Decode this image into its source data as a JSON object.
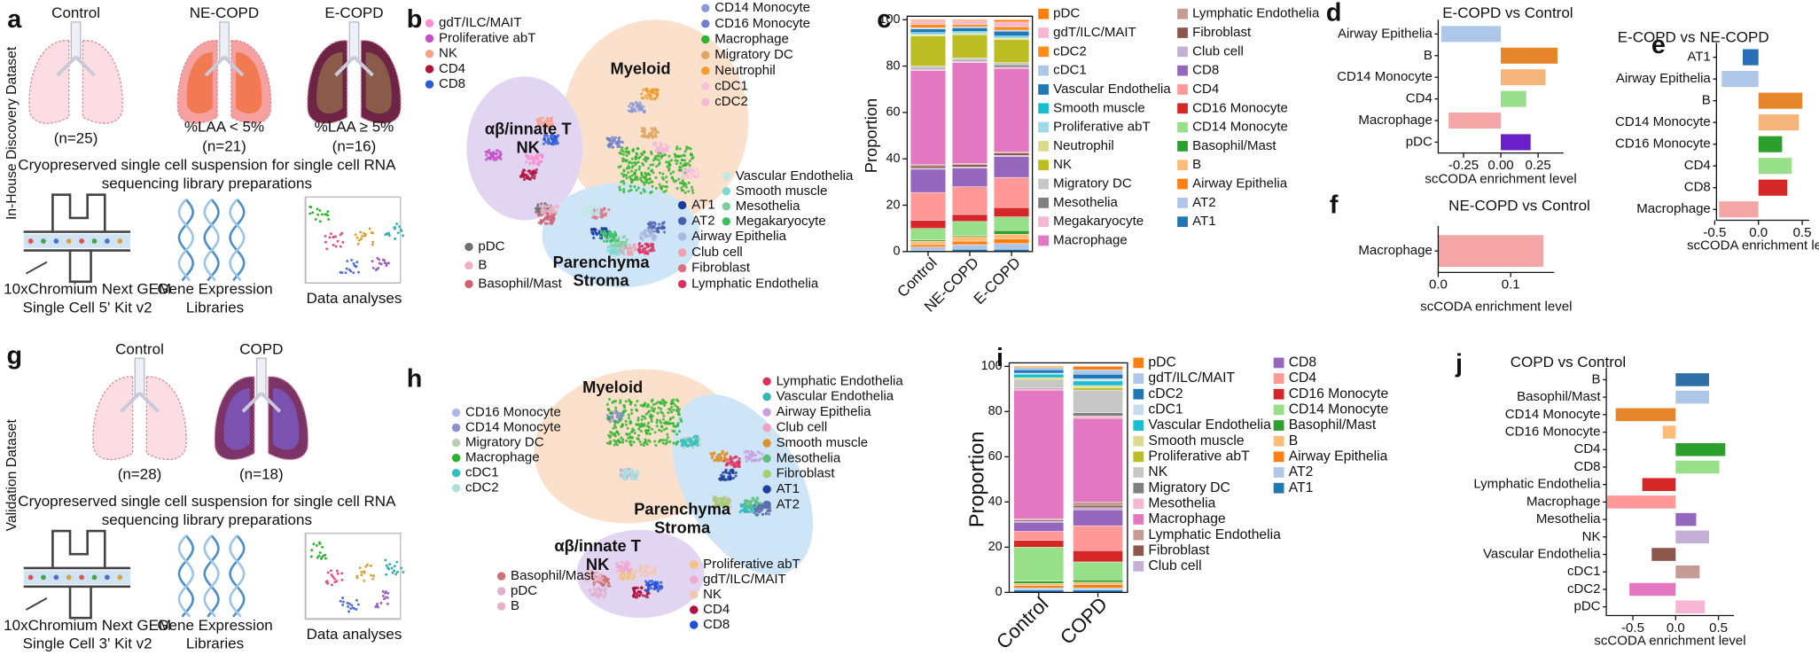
{
  "panels": {
    "a": {
      "letter": "a",
      "side_label": "In-House Discovery Dataset",
      "groups": [
        {
          "name": "Control",
          "lines": [
            "(n=25)"
          ]
        },
        {
          "name": "NE-COPD",
          "lines": [
            "%LAA < 5%",
            "(n=21)"
          ]
        },
        {
          "name": "E-COPD",
          "lines": [
            "%LAA ≥ 5%",
            "(n=16)"
          ]
        }
      ],
      "caption": [
        "Cryopreserved single cell suspension for single cell RNA",
        "sequencing library preparations"
      ],
      "steps": [
        {
          "lines": [
            "10xChromium Next GEM",
            "Single Cell 5' Kit v2"
          ]
        },
        {
          "lines": [
            "Gene Expression",
            "Libraries"
          ]
        },
        {
          "lines": [
            "Data analyses"
          ]
        }
      ]
    },
    "g": {
      "letter": "g",
      "side_label": "Validation Dataset",
      "groups": [
        {
          "name": "Control",
          "lines": [
            "(n=28)"
          ]
        },
        {
          "name": "COPD",
          "lines": [
            "(n=18)"
          ]
        }
      ],
      "caption": [
        "Cryopreserved single cell suspension for single cell RNA",
        "sequencing library preparations"
      ],
      "steps": [
        {
          "lines": [
            "10xChromium Next GEM",
            "Single Cell 3' Kit v2"
          ]
        },
        {
          "lines": [
            "Gene Expression",
            "Libraries"
          ]
        },
        {
          "lines": [
            "Data analyses"
          ]
        }
      ]
    },
    "b": {
      "letter": "b",
      "regions": [
        {
          "lines": [
            "Myeloid"
          ]
        },
        {
          "lines": [
            "αβ/innate T",
            "NK"
          ]
        },
        {
          "lines": [
            "Parenchyma",
            "Stroma"
          ]
        }
      ],
      "legends": [
        [
          {
            "name": "gdT/ILC/MAIT",
            "color": "#f78fd0"
          },
          {
            "name": "Proliferative abT",
            "color": "#c44fc8"
          },
          {
            "name": "NK",
            "color": "#f7a08a"
          },
          {
            "name": "CD4",
            "color": "#b0133e"
          },
          {
            "name": "CD8",
            "color": "#2a5ad6"
          }
        ],
        [
          {
            "name": "CD14 Monocyte",
            "color": "#8a9ad8"
          },
          {
            "name": "CD16 Monocyte",
            "color": "#6f7fc9"
          },
          {
            "name": "Macrophage",
            "color": "#2cb52c"
          },
          {
            "name": "Migratory DC",
            "color": "#e0a560"
          },
          {
            "name": "Neutrophil",
            "color": "#f09a30"
          },
          {
            "name": "cDC1",
            "color": "#f7c0e0"
          },
          {
            "name": "cDC2",
            "color": "#f5b8d8"
          }
        ],
        [
          {
            "name": "AT1",
            "color": "#1a3ba0"
          },
          {
            "name": "AT2",
            "color": "#4a5fb0"
          },
          {
            "name": "Airway Epithelia",
            "color": "#a8b8e0"
          },
          {
            "name": "Club cell",
            "color": "#f0a0b0"
          },
          {
            "name": "Fibroblast",
            "color": "#e07080"
          },
          {
            "name": "Lymphatic Endothelia",
            "color": "#e03060"
          }
        ],
        [
          {
            "name": "Vascular Endothelia",
            "color": "#bfe8e8"
          },
          {
            "name": "Smooth muscle",
            "color": "#7fd9d0"
          },
          {
            "name": "Mesothelia",
            "color": "#7ccf98"
          },
          {
            "name": "Megakaryocyte",
            "color": "#38c060"
          }
        ],
        [
          {
            "name": "pDC",
            "color": "#707070"
          },
          {
            "name": "B",
            "color": "#f0b0c0"
          },
          {
            "name": "Basophil/Mast",
            "color": "#d06070"
          }
        ]
      ]
    },
    "h": {
      "letter": "h",
      "regions": [
        {
          "lines": [
            "Myeloid"
          ]
        },
        {
          "lines": [
            "Parenchyma",
            "Stroma"
          ]
        },
        {
          "lines": [
            "αβ/innate T",
            "NK"
          ]
        }
      ],
      "legends": [
        [
          {
            "name": "CD16 Monocyte",
            "color": "#b0b8e8"
          },
          {
            "name": "CD14 Monocyte",
            "color": "#8a90d0"
          },
          {
            "name": "Migratory DC",
            "color": "#b8d0b0"
          },
          {
            "name": "Macrophage",
            "color": "#2cb52c"
          },
          {
            "name": "cDC1",
            "color": "#30c0c0"
          },
          {
            "name": "cDC2",
            "color": "#b0e0d8"
          }
        ],
        [
          {
            "name": "Lymphatic Endothelia",
            "color": "#e03060"
          },
          {
            "name": "Vascular Endothelia",
            "color": "#30b8b8"
          },
          {
            "name": "Airway Epithelia",
            "color": "#c8a0e0"
          },
          {
            "name": "Club cell",
            "color": "#f0a0c0"
          },
          {
            "name": "Smooth muscle",
            "color": "#e0902a"
          },
          {
            "name": "Mesothelia",
            "color": "#5cc07a"
          },
          {
            "name": "Fibroblast",
            "color": "#a0d070"
          },
          {
            "name": "AT1",
            "color": "#2040a0"
          },
          {
            "name": "AT2",
            "color": "#5a70b0"
          }
        ],
        [
          {
            "name": "Basophil/Mast",
            "color": "#d07070"
          },
          {
            "name": "pDC",
            "color": "#e0b0d0"
          },
          {
            "name": "B",
            "color": "#e8b0c0"
          }
        ],
        [
          {
            "name": "Proliferative abT",
            "color": "#f5c080"
          },
          {
            "name": "gdT/ILC/MAIT",
            "color": "#f0a8d0"
          },
          {
            "name": "NK",
            "color": "#f0c8b0"
          },
          {
            "name": "CD4",
            "color": "#b0103c"
          },
          {
            "name": "CD8",
            "color": "#2050d8"
          }
        ]
      ]
    }
  },
  "chart_data": [
    {
      "type": "stacked_bar",
      "panel": "c",
      "ylabel": "Proportion",
      "categories": [
        "Control",
        "NE-COPD",
        "E-COPD"
      ],
      "ylim": [
        0,
        100
      ],
      "yticks": [
        0,
        20,
        40,
        60,
        80,
        100
      ],
      "series": [
        {
          "name": "pDC",
          "color": "#ff7f0e",
          "values": [
            0.5,
            0.5,
            1
          ]
        },
        {
          "name": "gdT/ILC/MAIT",
          "color": "#f7b6d2",
          "values": [
            1.5,
            1.5,
            2
          ]
        },
        {
          "name": "cDC2",
          "color": "#ff8c1a",
          "values": [
            1.5,
            1,
            1.5
          ]
        },
        {
          "name": "cDC1",
          "color": "#aec7e8",
          "values": [
            0.5,
            0.5,
            0.5
          ]
        },
        {
          "name": "Vascular Endothelia",
          "color": "#1f77b4",
          "values": [
            1.5,
            1.5,
            2
          ]
        },
        {
          "name": "Smooth muscle",
          "color": "#17becf",
          "values": [
            0.5,
            0.5,
            0.5
          ]
        },
        {
          "name": "Proliferative abT",
          "color": "#9edae5",
          "values": [
            0.5,
            0.5,
            0.5
          ]
        },
        {
          "name": "Neutrophil",
          "color": "#dbdb8d",
          "values": [
            0.5,
            0.5,
            0.5
          ]
        },
        {
          "name": "NK",
          "color": "#bcbd22",
          "values": [
            13,
            10,
            10
          ]
        },
        {
          "name": "Migratory DC",
          "color": "#c7c7c7",
          "values": [
            1,
            1,
            1
          ]
        },
        {
          "name": "Mesothelia",
          "color": "#7f7f7f",
          "values": [
            0.5,
            0.5,
            1
          ]
        },
        {
          "name": "Megakaryocyte",
          "color": "#f7b6d2",
          "values": [
            0.5,
            0.5,
            0.5
          ]
        },
        {
          "name": "Macrophage",
          "color": "#e377c2",
          "values": [
            40.5,
            43.5,
            36
          ]
        },
        {
          "name": "Lymphatic Endothelia",
          "color": "#c49c94",
          "values": [
            0.5,
            0.5,
            0.5
          ]
        },
        {
          "name": "Fibroblast",
          "color": "#8c564b",
          "values": [
            1,
            1,
            1
          ]
        },
        {
          "name": "Club cell",
          "color": "#c5b0d5",
          "values": [
            0.5,
            0.5,
            0.5
          ]
        },
        {
          "name": "CD8",
          "color": "#9467bd",
          "values": [
            10,
            8,
            9
          ]
        },
        {
          "name": "CD4",
          "color": "#ff9896",
          "values": [
            12,
            12,
            13
          ]
        },
        {
          "name": "CD16 Monocyte",
          "color": "#d62728",
          "values": [
            3.5,
            3,
            4
          ]
        },
        {
          "name": "CD14 Monocyte",
          "color": "#98df8a",
          "values": [
            5,
            6,
            6
          ]
        },
        {
          "name": "Basophil/Mast",
          "color": "#2ca02c",
          "values": [
            0.5,
            0.5,
            1.5
          ]
        },
        {
          "name": "B",
          "color": "#ffbb78",
          "values": [
            1.5,
            2,
            2
          ]
        },
        {
          "name": "Airway Epithelia",
          "color": "#ff7f0e",
          "values": [
            1,
            1.5,
            2
          ]
        },
        {
          "name": "AT2",
          "color": "#aec7e8",
          "values": [
            1.5,
            2,
            2.5
          ]
        },
        {
          "name": "AT1",
          "color": "#1f77b4",
          "values": [
            0.5,
            1,
            1
          ]
        }
      ]
    },
    {
      "type": "hbar",
      "panel": "d",
      "title": "E-COPD vs Control",
      "xlabel": "scCODA enrichment level",
      "categories": [
        "Airway Epithelia",
        "B",
        "CD14 Monocyte",
        "CD4",
        "Macrophage",
        "pDC"
      ],
      "values": [
        -0.4,
        0.38,
        0.3,
        0.17,
        -0.35,
        0.2
      ],
      "colors": [
        "#aec7e8",
        "#e6852a",
        "#f5b47a",
        "#98df8a",
        "#f4a6a6",
        "#6a1fc9"
      ],
      "xlim": [
        -0.42,
        0.42
      ],
      "xticks": [
        {
          "value": -0.25,
          "label": "-0.25"
        },
        {
          "value": 0,
          "label": "0.00"
        },
        {
          "value": 0.25,
          "label": "0.25"
        }
      ]
    },
    {
      "type": "hbar",
      "panel": "e",
      "title": "E-COPD vs NE-COPD",
      "xlabel": "scCODA enrichment level",
      "categories": [
        "AT1",
        "Airway Epithelia",
        "B",
        "CD14 Monocyte",
        "CD16 Monocyte",
        "CD4",
        "CD8",
        "Macrophage"
      ],
      "values": [
        -0.18,
        -0.42,
        0.5,
        0.46,
        0.27,
        0.38,
        0.33,
        -0.45
      ],
      "colors": [
        "#2a6fb5",
        "#aec7e8",
        "#e6852a",
        "#f5b47a",
        "#2ca02c",
        "#98df8a",
        "#d62728",
        "#f4a6a6"
      ],
      "xlim": [
        -0.48,
        0.58
      ],
      "xticks": [
        {
          "value": -0.5,
          "label": "-0.5"
        },
        {
          "value": 0,
          "label": "0.0"
        },
        0.5
      ]
    },
    {
      "type": "hbar",
      "panel": "f",
      "title": "NE-COPD vs Control",
      "xlabel": "scCODA enrichment level",
      "categories": [
        "Macrophage"
      ],
      "values": [
        0.145
      ],
      "colors": [
        "#f4a6a6"
      ],
      "xlim": [
        0,
        0.16
      ],
      "xticks": [
        {
          "value": 0,
          "label": "0.0"
        },
        0.1
      ]
    },
    {
      "type": "stacked_bar",
      "panel": "i",
      "ylabel": "Proportion",
      "categories": [
        "Control",
        "COPD"
      ],
      "ylim": [
        0,
        100
      ],
      "yticks": [
        0,
        20,
        40,
        60,
        80,
        100
      ],
      "series": [
        {
          "name": "pDC",
          "color": "#ff7f0e",
          "values": [
            0.5,
            1.5
          ]
        },
        {
          "name": "gdT/ILC/MAIT",
          "color": "#aec7e8",
          "values": [
            1,
            2
          ]
        },
        {
          "name": "cDC2",
          "color": "#1f77b4",
          "values": [
            1.5,
            2
          ]
        },
        {
          "name": "cDC1",
          "color": "#c6dbef",
          "values": [
            0.5,
            1
          ]
        },
        {
          "name": "Vascular Endothelia",
          "color": "#17becf",
          "values": [
            1.5,
            2
          ]
        },
        {
          "name": "Smooth muscle",
          "color": "#dbdb8d",
          "values": [
            0.5,
            1
          ]
        },
        {
          "name": "Proliferative abT",
          "color": "#bcbd22",
          "values": [
            0.5,
            1
          ]
        },
        {
          "name": "NK",
          "color": "#c7c7c7",
          "values": [
            3.5,
            10
          ]
        },
        {
          "name": "Migratory DC",
          "color": "#7f7f7f",
          "values": [
            0.5,
            1.5
          ]
        },
        {
          "name": "Mesothelia",
          "color": "#f7b6d2",
          "values": [
            0.5,
            1
          ]
        },
        {
          "name": "Macrophage",
          "color": "#e377c2",
          "values": [
            57,
            37
          ]
        },
        {
          "name": "Lymphatic Endothelia",
          "color": "#c49c94",
          "values": [
            0.5,
            1.5
          ]
        },
        {
          "name": "Fibroblast",
          "color": "#8c564b",
          "values": [
            0.5,
            1
          ]
        },
        {
          "name": "Club cell",
          "color": "#c5b0d5",
          "values": [
            0.5,
            1
          ]
        },
        {
          "name": "CD8",
          "color": "#9467bd",
          "values": [
            4,
            7
          ]
        },
        {
          "name": "CD4",
          "color": "#ff9896",
          "values": [
            4,
            11
          ]
        },
        {
          "name": "CD16 Monocyte",
          "color": "#d62728",
          "values": [
            3,
            5
          ]
        },
        {
          "name": "CD14 Monocyte",
          "color": "#98df8a",
          "values": [
            15,
            8
          ]
        },
        {
          "name": "Basophil/Mast",
          "color": "#2ca02c",
          "values": [
            1,
            1
          ]
        },
        {
          "name": "B",
          "color": "#ffbb78",
          "values": [
            1,
            1
          ]
        },
        {
          "name": "Airway Epithelia",
          "color": "#ff7f0e",
          "values": [
            1,
            1.5
          ]
        },
        {
          "name": "AT2",
          "color": "#aec7e8",
          "values": [
            1,
            1
          ]
        },
        {
          "name": "AT1",
          "color": "#1f77b4",
          "values": [
            1,
            1
          ]
        }
      ]
    },
    {
      "type": "hbar",
      "panel": "j",
      "title": "COPD vs Control",
      "xlabel": "scCODA enrichment level",
      "categories": [
        "B",
        "Basophil/Mast",
        "CD14 Monocyte",
        "CD16 Monocyte",
        "CD4",
        "CD8",
        "Lymphatic Endothelia",
        "Macrophage",
        "Mesothelia",
        "NK",
        "Vascular Endothelia",
        "cDC1",
        "cDC2",
        "pDC"
      ],
      "values": [
        0.39,
        0.39,
        -0.7,
        -0.15,
        0.58,
        0.51,
        -0.39,
        -0.8,
        0.24,
        0.39,
        -0.28,
        0.28,
        -0.54,
        0.34
      ],
      "colors": [
        "#2f6fa8",
        "#aec7e8",
        "#e6852a",
        "#ffbb78",
        "#2ca02c",
        "#98df8a",
        "#d62728",
        "#ff9896",
        "#9467bd",
        "#c5b0d5",
        "#8c564b",
        "#c49c94",
        "#e377c2",
        "#f7b6d2"
      ],
      "xlim": [
        -0.81,
        0.68
      ],
      "xticks": [
        {
          "value": -0.5,
          "label": "-0.5"
        },
        {
          "value": 0,
          "label": "0.0"
        },
        0.5
      ]
    }
  ]
}
